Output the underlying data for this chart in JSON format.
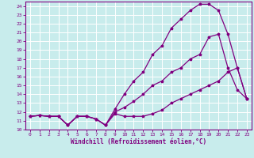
{
  "xlabel": "Windchill (Refroidissement éolien,°C)",
  "bg_color": "#c8ecec",
  "line_color": "#800080",
  "grid_color": "#ffffff",
  "xlim": [
    -0.5,
    23.5
  ],
  "ylim": [
    10,
    24.5
  ],
  "xticks": [
    0,
    1,
    2,
    3,
    4,
    5,
    6,
    7,
    8,
    9,
    10,
    11,
    12,
    13,
    14,
    15,
    16,
    17,
    18,
    19,
    20,
    21,
    22,
    23
  ],
  "yticks": [
    10,
    11,
    12,
    13,
    14,
    15,
    16,
    17,
    18,
    19,
    20,
    21,
    22,
    23,
    24
  ],
  "line1_x": [
    0,
    1,
    2,
    3,
    4,
    5,
    6,
    7,
    8,
    9,
    10,
    11,
    12,
    13,
    14,
    15,
    16,
    17,
    18,
    19,
    20,
    21,
    22,
    23
  ],
  "line1_y": [
    11.5,
    11.6,
    11.5,
    11.5,
    10.5,
    11.5,
    11.5,
    11.2,
    10.5,
    11.8,
    11.5,
    11.5,
    11.5,
    11.8,
    12.2,
    13.0,
    13.5,
    14.0,
    14.5,
    15.0,
    15.5,
    16.5,
    17.0,
    13.5
  ],
  "line2_x": [
    0,
    1,
    2,
    3,
    4,
    5,
    6,
    7,
    8,
    9,
    10,
    11,
    12,
    13,
    14,
    15,
    16,
    17,
    18,
    19,
    20,
    21,
    22,
    23
  ],
  "line2_y": [
    11.5,
    11.6,
    11.5,
    11.5,
    10.5,
    11.5,
    11.5,
    11.2,
    10.5,
    12.0,
    12.5,
    13.2,
    14.0,
    15.0,
    15.5,
    16.5,
    17.0,
    18.0,
    18.5,
    20.5,
    20.8,
    17.0,
    14.5,
    13.5
  ],
  "line3_x": [
    0,
    1,
    2,
    3,
    4,
    5,
    6,
    7,
    8,
    9,
    10,
    11,
    12,
    13,
    14,
    15,
    16,
    17,
    18,
    19,
    20,
    21,
    22,
    23
  ],
  "line3_y": [
    11.5,
    11.6,
    11.5,
    11.5,
    10.5,
    11.5,
    11.5,
    11.2,
    10.5,
    12.3,
    14.0,
    15.5,
    16.5,
    18.5,
    19.5,
    21.5,
    22.5,
    23.5,
    24.2,
    24.2,
    23.5,
    20.8,
    17.0,
    13.5
  ]
}
